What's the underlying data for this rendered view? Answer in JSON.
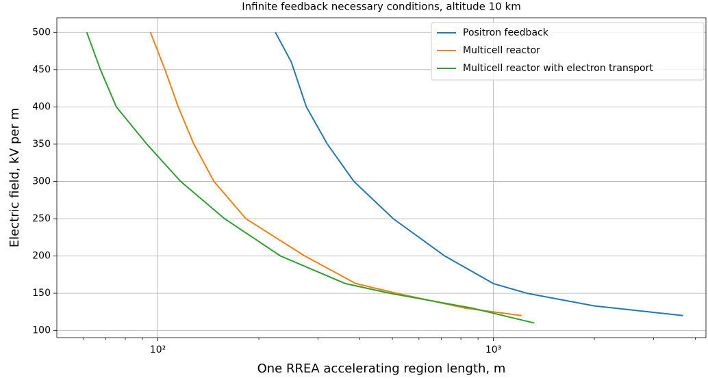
{
  "chart_data": {
    "type": "line",
    "title": "Infinite feedback necessary conditions, altitude 10 km",
    "x_label": "One RREA accelerating region length, m",
    "y_label": "Electric field, kV per m",
    "xscale": "log",
    "xlim": [
      50,
      4300
    ],
    "xticks": [
      {
        "value": 100,
        "label": "10²"
      },
      {
        "value": 1000,
        "label": "10³"
      }
    ],
    "xminorticks": [
      60,
      70,
      80,
      90,
      200,
      300,
      400,
      500,
      600,
      700,
      800,
      900,
      2000,
      3000,
      4000
    ],
    "ylim": [
      90.5,
      519.5
    ],
    "yticks": [
      100,
      150,
      200,
      250,
      300,
      350,
      400,
      450,
      500
    ],
    "grid": true,
    "legend": "upper right",
    "series": [
      {
        "name": "Positron feedback",
        "color": "#1f77b4",
        "x": [
          224,
          250,
          277,
          320,
          384,
          503,
          716,
          1000,
          1259,
          2000,
          3673
        ],
        "values": [
          500,
          460,
          400,
          350,
          300,
          250,
          200,
          163,
          150,
          133,
          120
        ]
      },
      {
        "name": "Multicell reactor",
        "color": "#ff7f0e",
        "x": [
          95,
          105,
          115,
          128,
          147,
          183,
          274,
          389,
          515,
          825,
          1213
        ],
        "values": [
          500,
          450,
          400,
          350,
          300,
          250,
          200,
          163,
          150,
          130,
          120
        ]
      },
      {
        "name": "Multicell reactor with electron transport",
        "color": "#2ca02c",
        "x": [
          61.4,
          67.4,
          75.2,
          92.7,
          117,
          158,
          232,
          362,
          492,
          865,
          1325
        ],
        "values": [
          500,
          450,
          400,
          350,
          300,
          250,
          200,
          163,
          150,
          130,
          110
        ]
      }
    ]
  }
}
